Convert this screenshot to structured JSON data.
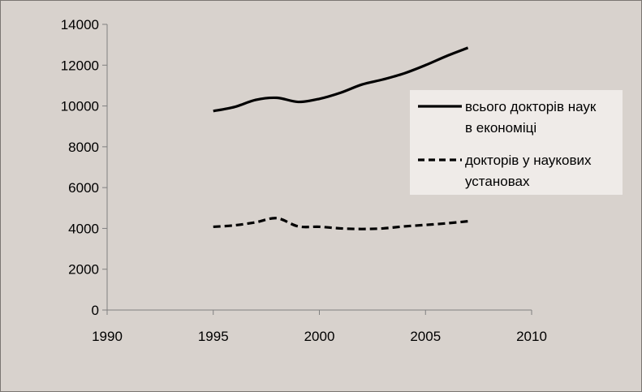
{
  "chart_data": {
    "type": "line",
    "title": "",
    "xlabel": "",
    "ylabel": "",
    "xlim": [
      1990,
      2010
    ],
    "ylim": [
      0,
      14000
    ],
    "x_ticks": [
      1990,
      1995,
      2000,
      2005,
      2010
    ],
    "y_ticks": [
      0,
      2000,
      4000,
      6000,
      8000,
      10000,
      12000,
      14000
    ],
    "x_tick_labels": [
      "1990",
      "1995",
      "2000",
      "2005",
      "2010"
    ],
    "y_tick_labels": [
      "0",
      "2000",
      "4000",
      "6000",
      "8000",
      "10000",
      "12000",
      "14000"
    ],
    "grid": false,
    "legend_position": "right",
    "series": [
      {
        "name": "всього докторів наук в економіці",
        "legend_lines": [
          "всього докторів наук",
          "в економіці"
        ],
        "style": "solid",
        "color": "#000000",
        "x": [
          1995,
          1996,
          1997,
          1998,
          1999,
          2000,
          2001,
          2002,
          2003,
          2004,
          2005,
          2006,
          2007
        ],
        "y": [
          9750,
          9950,
          10300,
          10400,
          10200,
          10350,
          10650,
          11050,
          11300,
          11600,
          12000,
          12450,
          12850
        ]
      },
      {
        "name": "докторів у наукових установах",
        "legend_lines": [
          "докторів у наукових",
          "установах"
        ],
        "style": "dashed",
        "color": "#000000",
        "x": [
          1995,
          1996,
          1997,
          1998,
          1999,
          2000,
          2001,
          2002,
          2003,
          2004,
          2005,
          2006,
          2007
        ],
        "y": [
          4080,
          4150,
          4300,
          4500,
          4100,
          4080,
          4000,
          3970,
          4000,
          4100,
          4170,
          4250,
          4350
        ]
      }
    ]
  },
  "colors": {
    "chart_background": "#d8d2cd",
    "legend_background": "#efebe8",
    "axis": "#808080",
    "line": "#000000"
  }
}
